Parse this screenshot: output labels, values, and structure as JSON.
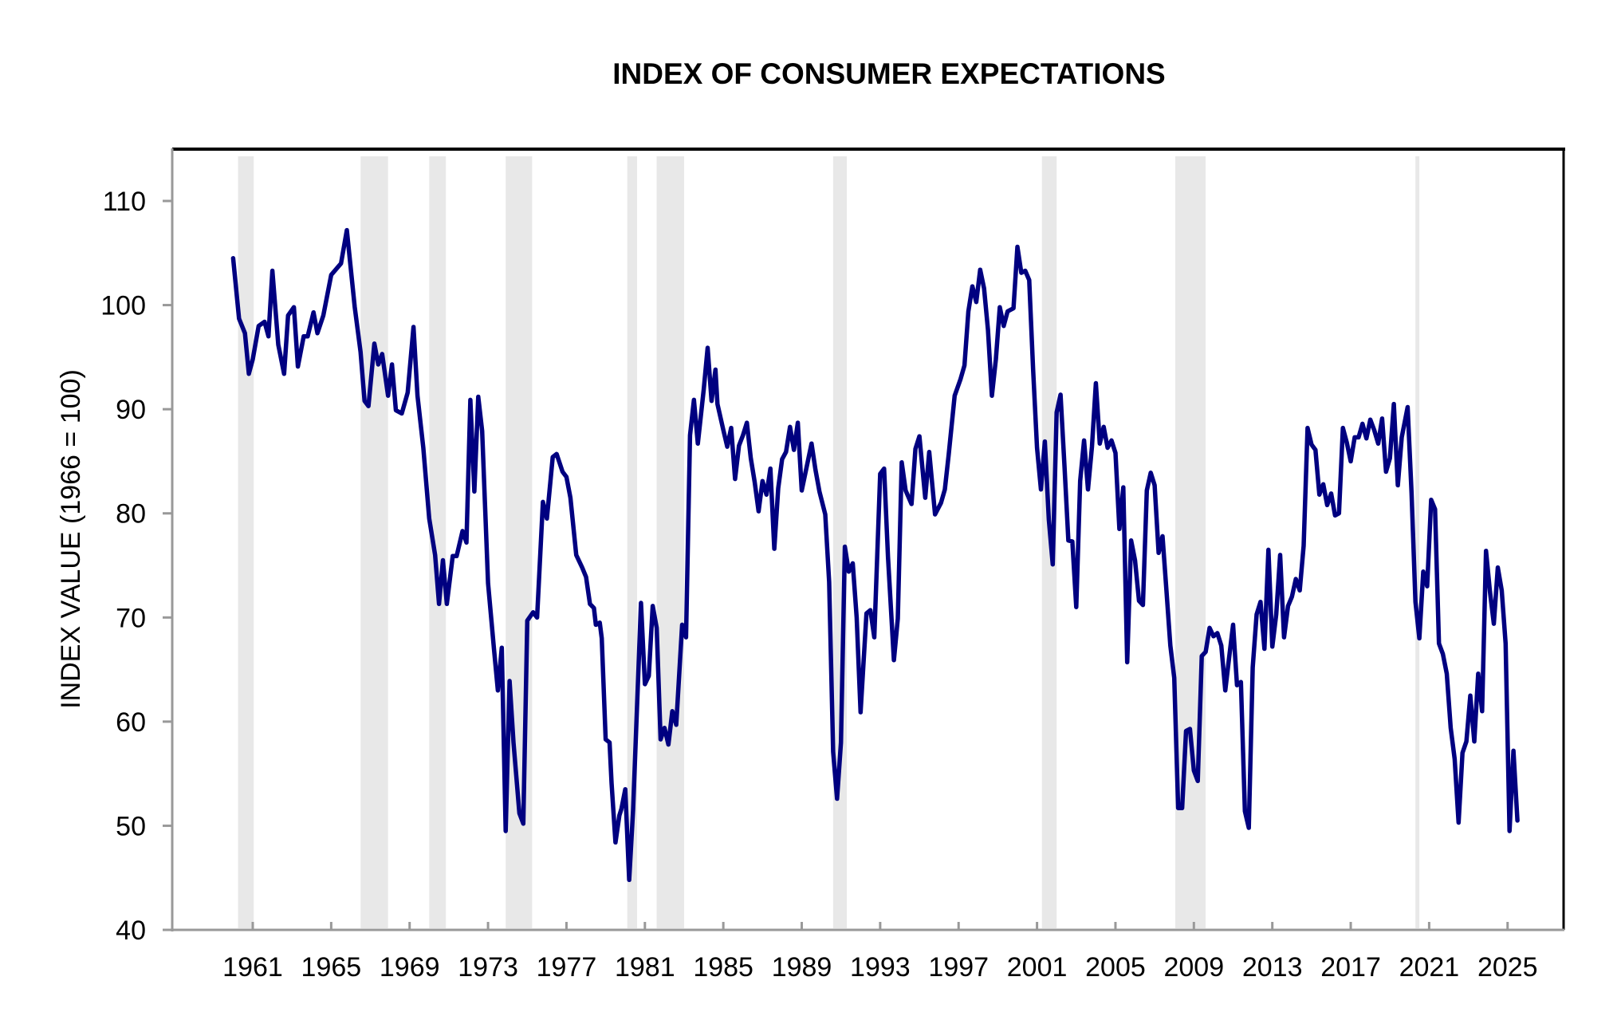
{
  "chart_data": {
    "type": "line",
    "title": "INDEX OF CONSUMER EXPECTATIONS",
    "xlabel": "",
    "ylabel": "INDEX VALUE (1966 = 100)",
    "ylim": [
      40,
      110
    ],
    "yticks": [
      40,
      50,
      60,
      70,
      80,
      90,
      100,
      110
    ],
    "xlim": [
      1958.9,
      2026.9
    ],
    "xticks": [
      1961,
      1965,
      1969,
      1973,
      1977,
      1981,
      1985,
      1989,
      1993,
      1997,
      2001,
      2005,
      2009,
      2013,
      2017,
      2021,
      2025
    ],
    "grid": false,
    "legend": "none",
    "colors": {
      "line": "#000080",
      "recession": "#e8e8e8",
      "axis": "#999999",
      "frame": "#000000"
    },
    "recessions": [
      [
        1960.25,
        1961.05
      ],
      [
        1966.5,
        1967.9
      ],
      [
        1970.0,
        1970.85
      ],
      [
        1973.9,
        1975.25
      ],
      [
        1980.1,
        1980.6
      ],
      [
        1981.6,
        1983.0
      ],
      [
        1990.6,
        1991.3
      ],
      [
        2001.25,
        2002.0
      ],
      [
        2008.05,
        2009.6
      ],
      [
        2020.3,
        2020.5
      ]
    ],
    "series": [
      {
        "name": "Index of Consumer Expectations",
        "x": [
          1960.0,
          1960.3,
          1960.6,
          1960.8,
          1961.0,
          1961.3,
          1961.6,
          1961.8,
          1962.0,
          1962.3,
          1962.6,
          1962.8,
          1963.1,
          1963.3,
          1963.6,
          1963.8,
          1964.1,
          1964.3,
          1964.6,
          1965.0,
          1965.5,
          1965.8,
          1966.2,
          1966.5,
          1966.7,
          1966.9,
          1967.2,
          1967.4,
          1967.6,
          1967.9,
          1968.1,
          1968.3,
          1968.6,
          1968.9,
          1969.2,
          1969.4,
          1969.7,
          1970.0,
          1970.3,
          1970.5,
          1970.7,
          1970.9,
          1971.2,
          1971.4,
          1971.7,
          1971.9,
          1972.1,
          1972.3,
          1972.5,
          1972.7,
          1973.0,
          1973.3,
          1973.5,
          1973.7,
          1973.9,
          1974.1,
          1974.3,
          1974.6,
          1974.8,
          1975.0,
          1975.3,
          1975.5,
          1975.8,
          1976.0,
          1976.3,
          1976.5,
          1976.8,
          1977.0,
          1977.2,
          1977.5,
          1977.8,
          1978.0,
          1978.2,
          1978.4,
          1978.5,
          1978.7,
          1978.8,
          1979.0,
          1979.2,
          1979.3,
          1979.5,
          1979.7,
          1979.8,
          1980.0,
          1980.2,
          1980.4,
          1980.8,
          1981.0,
          1981.2,
          1981.4,
          1981.6,
          1981.8,
          1982.0,
          1982.2,
          1982.4,
          1982.6,
          1982.9,
          1983.1,
          1983.3,
          1983.5,
          1983.7,
          1984.0,
          1984.2,
          1984.4,
          1984.6,
          1984.7,
          1985.0,
          1985.2,
          1985.4,
          1985.6,
          1985.8,
          1986.0,
          1986.2,
          1986.4,
          1986.6,
          1986.8,
          1987.0,
          1987.2,
          1987.4,
          1987.6,
          1987.8,
          1988.0,
          1988.2,
          1988.4,
          1988.6,
          1988.8,
          1989.0,
          1989.3,
          1989.5,
          1989.7,
          1989.9,
          1990.2,
          1990.4,
          1990.6,
          1990.8,
          1991.0,
          1991.2,
          1991.4,
          1991.6,
          1991.8,
          1992.0,
          1992.3,
          1992.5,
          1992.7,
          1993.0,
          1993.2,
          1993.4,
          1993.7,
          1993.9,
          1994.1,
          1994.3,
          1994.6,
          1994.8,
          1995.0,
          1995.3,
          1995.5,
          1995.8,
          1996.1,
          1996.3,
          1996.5,
          1996.8,
          1997.1,
          1997.3,
          1997.5,
          1997.7,
          1997.9,
          1998.1,
          1998.3,
          1998.5,
          1998.7,
          1998.9,
          1999.1,
          1999.3,
          1999.5,
          1999.8,
          2000.0,
          2000.2,
          2000.4,
          2000.6,
          2000.8,
          2001.0,
          2001.2,
          2001.4,
          2001.6,
          2001.8,
          2002.0,
          2002.2,
          2002.4,
          2002.6,
          2002.8,
          2003.0,
          2003.2,
          2003.4,
          2003.6,
          2003.8,
          2004.0,
          2004.2,
          2004.4,
          2004.6,
          2004.8,
          2005.0,
          2005.2,
          2005.4,
          2005.6,
          2005.8,
          2006.0,
          2006.2,
          2006.4,
          2006.6,
          2006.8,
          2007.0,
          2007.2,
          2007.4,
          2007.6,
          2007.8,
          2008.0,
          2008.2,
          2008.4,
          2008.6,
          2008.8,
          2009.0,
          2009.2,
          2009.4,
          2009.6,
          2009.8,
          2010.0,
          2010.2,
          2010.4,
          2010.6,
          2010.8,
          2011.0,
          2011.2,
          2011.4,
          2011.6,
          2011.8,
          2012.0,
          2012.2,
          2012.4,
          2012.6,
          2012.8,
          2013.0,
          2013.2,
          2013.4,
          2013.6,
          2013.8,
          2014.0,
          2014.2,
          2014.4,
          2014.6,
          2014.8,
          2015.0,
          2015.2,
          2015.4,
          2015.6,
          2015.8,
          2016.0,
          2016.2,
          2016.4,
          2016.6,
          2016.8,
          2017.0,
          2017.2,
          2017.4,
          2017.6,
          2017.8,
          2018.0,
          2018.2,
          2018.4,
          2018.6,
          2018.8,
          2019.0,
          2019.2,
          2019.4,
          2019.6,
          2019.9,
          2020.1,
          2020.3,
          2020.5,
          2020.7,
          2020.9,
          2021.1,
          2021.3,
          2021.5,
          2021.7,
          2021.9,
          2022.1,
          2022.3,
          2022.5,
          2022.7,
          2022.9,
          2023.1,
          2023.3,
          2023.5,
          2023.7,
          2023.9,
          2024.1,
          2024.3,
          2024.5,
          2024.7,
          2024.9,
          2025.1,
          2025.3,
          2025.5
        ],
        "values": [
          104.5,
          98.7,
          97.3,
          93.4,
          94.8,
          98.0,
          98.4,
          97.0,
          103.3,
          96.2,
          93.4,
          99.0,
          99.8,
          94.1,
          97.0,
          97.0,
          99.3,
          97.3,
          99.0,
          102.9,
          104.0,
          107.2,
          99.8,
          95.5,
          90.8,
          90.3,
          96.3,
          94.3,
          95.3,
          91.3,
          94.3,
          89.9,
          89.6,
          91.6,
          97.9,
          91.3,
          86.3,
          79.5,
          76.0,
          71.3,
          75.5,
          71.3,
          75.9,
          75.9,
          78.3,
          77.2,
          90.9,
          82.1,
          91.2,
          87.9,
          73.3,
          67.0,
          63.0,
          67.1,
          49.5,
          63.9,
          58.0,
          51.2,
          50.2,
          69.7,
          70.5,
          70.0,
          81.1,
          79.5,
          85.4,
          85.7,
          84.0,
          83.5,
          81.5,
          76.0,
          74.8,
          73.9,
          71.3,
          70.9,
          69.3,
          69.5,
          68.0,
          58.3,
          58.0,
          54.1,
          48.4,
          51.0,
          51.6,
          53.5,
          44.8,
          51.5,
          71.4,
          63.6,
          64.4,
          71.1,
          69.0,
          58.3,
          59.4,
          57.8,
          61.0,
          59.7,
          69.3,
          68.1,
          87.5,
          90.9,
          86.7,
          91.9,
          95.9,
          90.8,
          93.8,
          90.5,
          88.0,
          86.4,
          88.2,
          83.3,
          86.5,
          87.5,
          88.7,
          85.3,
          83.0,
          80.2,
          83.1,
          81.8,
          84.3,
          76.6,
          82.4,
          85.2,
          85.9,
          88.3,
          86.1,
          88.7,
          82.2,
          84.9,
          86.7,
          84.2,
          82.1,
          79.9,
          73.4,
          57.1,
          52.6,
          58.0,
          76.8,
          74.4,
          75.2,
          70.0,
          60.9,
          70.4,
          70.7,
          68.1,
          83.8,
          84.3,
          75.8,
          65.9,
          69.9,
          84.9,
          82.2,
          80.9,
          86.2,
          87.4,
          81.5,
          85.9,
          79.9,
          81.0,
          82.3,
          85.7,
          91.3,
          92.9,
          94.2,
          99.4,
          101.8,
          100.3,
          103.4,
          101.6,
          97.6,
          91.3,
          94.8,
          99.8,
          98.0,
          99.4,
          99.7,
          105.6,
          103.1,
          103.3,
          102.4,
          93.8,
          86.3,
          82.3,
          86.9,
          79.4,
          75.1,
          89.7,
          91.4,
          84.6,
          77.4,
          77.3,
          71.0,
          83.1,
          87.0,
          82.3,
          86.4,
          92.5,
          86.7,
          88.3,
          86.3,
          87.0,
          85.8,
          78.5,
          82.5,
          65.7,
          77.4,
          75.5,
          71.6,
          71.2,
          82.2,
          83.9,
          82.7,
          76.2,
          77.8,
          72.6,
          67.3,
          64.2,
          51.7,
          51.7,
          59.1,
          59.3,
          55.3,
          54.3,
          66.3,
          66.7,
          69.0,
          68.2,
          68.5,
          67.3,
          63.0,
          66.2,
          69.3,
          63.5,
          63.8,
          51.4,
          49.8,
          65.2,
          70.3,
          71.5,
          67.0,
          76.5,
          67.2,
          70.3,
          76.0,
          68.1,
          71.1,
          72.0,
          73.7,
          72.6,
          76.9,
          88.2,
          86.6,
          86.1,
          81.8,
          82.8,
          80.8,
          81.9,
          79.8,
          80.0,
          88.2,
          86.8,
          85.0,
          87.3,
          87.3,
          88.6,
          87.2,
          89.0,
          88.0,
          86.7,
          89.1,
          84.0,
          85.3,
          90.5,
          82.7,
          87.3,
          90.2,
          82.0,
          71.5,
          68.0,
          74.4,
          73.0,
          81.3,
          80.4,
          67.5,
          66.5,
          64.6,
          59.4,
          56.4,
          50.3,
          57.0,
          58.1,
          62.5,
          58.1,
          64.6,
          61.0,
          76.4,
          72.5,
          69.4,
          74.8,
          72.6,
          67.5,
          49.5,
          57.2,
          50.5
        ]
      }
    ]
  }
}
